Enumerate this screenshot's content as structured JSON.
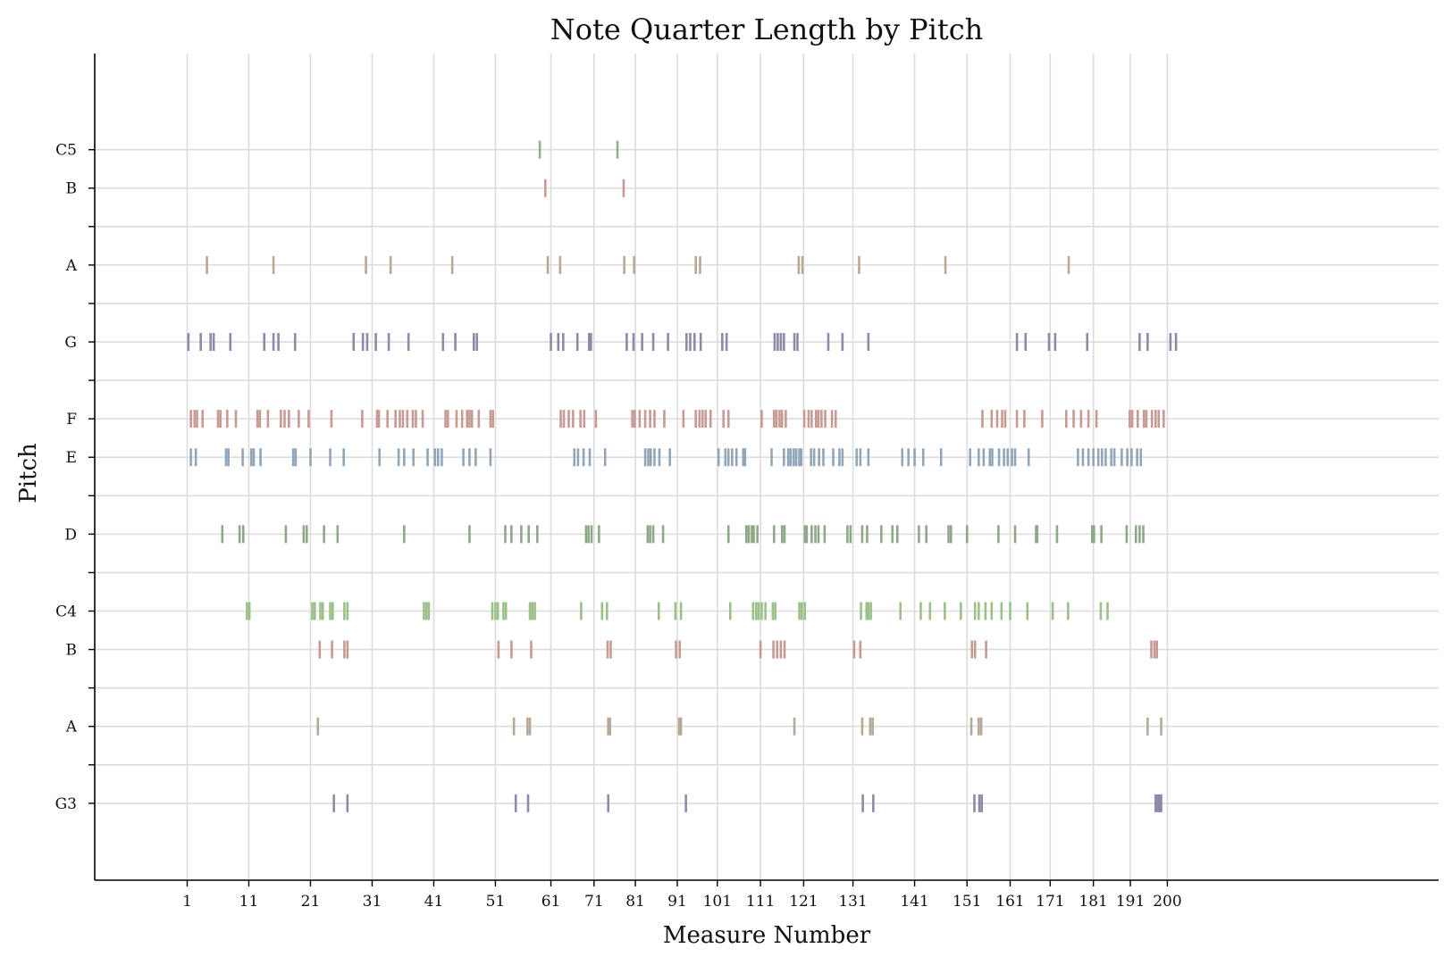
{
  "chart_data": {
    "type": "scatter",
    "title": "Note Quarter Length by Pitch",
    "xlabel": "Measure Number",
    "ylabel": "Pitch",
    "xlim": [
      -14,
      204
    ],
    "x_ticks": [
      1,
      11,
      21,
      31,
      41,
      51,
      61,
      71,
      81,
      91,
      101,
      111,
      121,
      131,
      141,
      151,
      161,
      171,
      181,
      191,
      200
    ],
    "x_positions": [
      1,
      11,
      21,
      31,
      41,
      51,
      60,
      67,
      73.7,
      80.5,
      87,
      94,
      101,
      109,
      119,
      127.5,
      134.5,
      141,
      148,
      154,
      160
    ],
    "pitch_rows": [
      {
        "name": "C5",
        "value": 72
      },
      {
        "name": "B",
        "value": 71
      },
      {
        "name": "",
        "value": 70
      },
      {
        "name": "A",
        "value": 69
      },
      {
        "name": "",
        "value": 68
      },
      {
        "name": "G",
        "value": 67
      },
      {
        "name": "",
        "value": 66
      },
      {
        "name": "F",
        "value": 65
      },
      {
        "name": "E",
        "value": 64
      },
      {
        "name": "",
        "value": 63
      },
      {
        "name": "D",
        "value": 62
      },
      {
        "name": "",
        "value": 61
      },
      {
        "name": "C4",
        "value": 60
      },
      {
        "name": "B",
        "value": 59
      },
      {
        "name": "",
        "value": 58
      },
      {
        "name": "A",
        "value": 57
      },
      {
        "name": "",
        "value": 56
      },
      {
        "name": "G3",
        "value": 55
      }
    ],
    "ylim": [
      53,
      74.5
    ],
    "grid": true,
    "series": [
      {
        "pitch": 72,
        "color": "#8fb08a",
        "x": [
          58.2,
          70.8
        ]
      },
      {
        "pitch": 71,
        "color": "#c79a93",
        "x": [
          59.1,
          71.8
        ]
      },
      {
        "pitch": 69,
        "color": "#b8a896",
        "x": [
          4.2,
          15,
          30,
          34,
          44,
          59.5,
          61.5,
          71.9,
          73.5,
          83.5,
          84.2,
          100.2,
          100.8,
          110,
          124,
          144
        ]
      },
      {
        "pitch": 67,
        "color": "#8e8aa8",
        "x": [
          1.2,
          3.2,
          4.8,
          5.3,
          8,
          13.5,
          15,
          15.8,
          18.5,
          28,
          29.5,
          30.2,
          31.6,
          33.7,
          36.9,
          42.5,
          44.5,
          47.5,
          48,
          60,
          61.2,
          62,
          64.3,
          66.2,
          66.5,
          72.3,
          73.4,
          74.8,
          76.6,
          79,
          82,
          82.6,
          83.3,
          84.3,
          87.8,
          88.5,
          96.3,
          96.8,
          97.3,
          97.8,
          99.5,
          100,
          105,
          107.3,
          111.5,
          135.6,
          137,
          140.8,
          141.8,
          147,
          155.5,
          156.8,
          160.5,
          161.4
        ]
      },
      {
        "pitch": 65,
        "color": "#c79a93",
        "x": [
          1.6,
          2.2,
          2.6,
          3.5,
          6,
          6.4,
          7.5,
          8.9,
          12.4,
          12.8,
          14.1,
          16.2,
          16.8,
          17.5,
          19.1,
          20.7,
          24.4,
          29.4,
          31.8,
          32.1,
          33.5,
          34.8,
          35.5,
          36,
          36.7,
          37.6,
          38.1,
          39.2,
          42.9,
          43.3,
          44.7,
          45.6,
          46.4,
          46.8,
          47.2,
          48.3,
          50.2,
          50.6,
          61.6,
          62.1,
          62.9,
          63.6,
          64.8,
          65.4,
          67.3,
          73.2,
          73.6,
          74.4,
          75.3,
          76.1,
          76.8,
          78.4,
          81.5,
          83.5,
          84.1,
          84.6,
          85.1,
          85.9,
          88,
          88.8,
          94.2,
          96.2,
          96.6,
          97.1,
          97.5,
          98.1,
          101.1,
          101.8,
          102.3,
          103,
          103.4,
          103.9,
          104.5,
          105.6,
          106.2,
          130,
          131.5,
          132.4,
          133.2,
          133.7,
          135.6,
          136.8,
          139.7,
          143.6,
          144.8,
          146,
          147.2,
          148.5,
          153.9,
          154.3,
          155.2,
          156.2,
          156.6,
          157.5,
          158.1,
          158.6,
          159.4
        ]
      },
      {
        "pitch": 64,
        "color": "#92a6b8",
        "x": [
          1.6,
          2.4,
          7.3,
          7.7,
          10,
          11.4,
          11.8,
          12.9,
          18.2,
          18.6,
          21,
          24.2,
          26.4,
          32.2,
          35.3,
          36.2,
          37.7,
          40,
          41.2,
          41.7,
          42.3,
          45.8,
          46.8,
          47.8,
          50.2,
          63.8,
          64.4,
          65.3,
          66.3,
          68.8,
          75.3,
          75.8,
          76.2,
          76.8,
          77.6,
          79.3,
          87.2,
          88.3,
          88.8,
          89.4,
          90.1,
          91.2,
          91.5,
          95.8,
          97.8,
          98.5,
          98.9,
          99.4,
          99.8,
          100.3,
          100.6,
          102.2,
          102.7,
          103.5,
          104.2,
          105.8,
          106.8,
          107.3,
          109.6,
          110.2,
          111.5,
          117,
          118,
          119,
          120.4,
          123.3,
          128,
          129.4,
          130.2,
          131.2,
          131.6,
          132.7,
          133.5,
          134.1,
          134.8,
          135.3,
          137.5,
          145.5,
          146.3,
          147.2,
          148,
          148.8,
          149.4,
          150,
          150.9,
          151.4,
          152.6,
          153.5,
          154.2,
          155.1,
          155.7
        ]
      },
      {
        "pitch": 62,
        "color": "#8fa88a",
        "x": [
          6.7,
          9.5,
          10.1,
          17,
          19.9,
          20.4,
          23.2,
          25.4,
          36.2,
          46.8,
          52.6,
          53.6,
          55.2,
          56.4,
          57.8,
          65.7,
          66.1,
          66.6,
          67.8,
          75.7,
          76.1,
          76.6,
          78.2,
          88.8,
          91.7,
          92.1,
          92.6,
          92.9,
          93.5,
          96.2,
          97.5,
          97.9,
          101.2,
          101.5,
          102.3,
          102.9,
          103.4,
          104.4,
          108.1,
          108.6,
          110.5,
          111.3,
          113.6,
          115.4,
          116.2,
          119.7,
          120.9,
          124.5,
          124.9,
          127.5,
          132.6,
          135.3,
          138.7,
          138.9,
          142.1,
          147.8,
          148.1,
          149.3,
          153.4,
          154.9,
          155.5,
          156.1
        ]
      },
      {
        "pitch": 60,
        "color": "#9cc08a",
        "x": [
          10.7,
          11.1,
          21.3,
          21.7,
          22.6,
          23,
          24.2,
          24.6,
          26.5,
          27,
          39.4,
          39.8,
          40.2,
          50.5,
          51,
          51.4,
          52.3,
          52.7,
          56.6,
          57,
          57.4,
          64.9,
          68.3,
          69.1,
          77.5,
          80.2,
          81.1,
          89.1,
          92.8,
          93.3,
          93.7,
          94.2,
          94.8,
          96,
          96.4,
          100.3,
          100.7,
          101.2,
          110.3,
          111.2,
          111.5,
          111.9,
          116.7,
          120,
          121.5,
          123.9,
          126.5,
          128.8,
          129.4,
          130.5,
          131.5,
          133.1,
          134.5,
          137.3,
          141.4,
          143.9,
          149.2,
          150.3
        ]
      },
      {
        "pitch": 59,
        "color": "#c79a93",
        "x": [
          22.5,
          24.5,
          26.5,
          27,
          51.5,
          53.6,
          56.8,
          69.2,
          69.7,
          80.3,
          80.9,
          94,
          96.1,
          96.7,
          97.3,
          97.9,
          109.2,
          110.2,
          128.3,
          128.8,
          130.6,
          157.4,
          157.9,
          158.3
        ]
      },
      {
        "pitch": 57,
        "color": "#b8a896",
        "x": [
          22.2,
          54,
          56.2,
          56.6,
          69.3,
          69.6,
          80.8,
          81.1,
          99.5,
          110.5,
          111.8,
          112.2,
          128.2,
          129.4,
          129.8,
          156.8,
          159
        ]
      },
      {
        "pitch": 55,
        "color": "#8e8aa8",
        "x": [
          24.8,
          27,
          54.3,
          56.3,
          69.3,
          81.9,
          110.6,
          112.3,
          128.7,
          129.5,
          129.9,
          158.1,
          158.4,
          158.7,
          159
        ]
      }
    ]
  }
}
